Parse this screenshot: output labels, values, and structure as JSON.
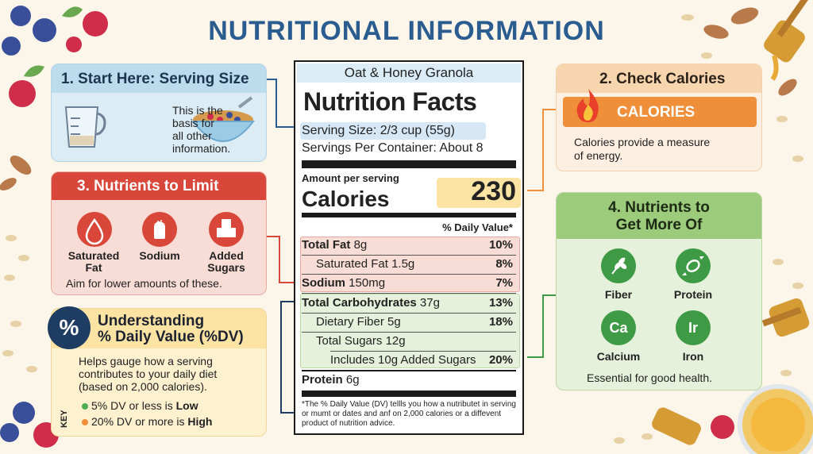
{
  "title": "NUTRITIONAL INFORMATION",
  "label": {
    "product": "Oat & Honey Granola",
    "heading": "Nutrition Facts",
    "serving_size": "Serving Size: 2/3 cup (55g)",
    "servings_per_container": "Servings Per Container:  About 8",
    "amount_per_serving": "Amount per serving",
    "calories_label": "Calories",
    "calories_value": "230",
    "dv_header": "% Daily Value*",
    "rows": [
      {
        "name": "Total Fat",
        "amount": "8g",
        "dv": "10%"
      },
      {
        "name": "Saturated Fat",
        "amount": "1.5g",
        "dv": "8%"
      },
      {
        "name": "Sodium",
        "amount": "150mg",
        "dv": "7%"
      },
      {
        "name": "Total Carbohydrates",
        "amount": "37g",
        "dv": "13%"
      },
      {
        "name": "Dietary Fiber",
        "amount": "5g",
        "dv": "18%"
      },
      {
        "name": "Total Sugars",
        "amount": "12g",
        "dv": ""
      },
      {
        "name": "Includes 10g Added Sugars",
        "amount": "",
        "dv": "20%"
      },
      {
        "name": "Protein",
        "amount": "6g",
        "dv": ""
      }
    ],
    "footnote": "*The % Daily Value (DV) tellls you how a nutributet in serving or mumt or dates and anf on 2,000 calories or a diffevent product of nutrition advice."
  },
  "card1": {
    "heading": "1. Start Here: Serving Size",
    "text_lines": [
      "This is the",
      "basis for",
      "all other",
      "information."
    ]
  },
  "card2": {
    "heading": "2. Check Calories",
    "bar": "CALORIES",
    "text_lines": [
      "Calories provide a measure",
      "of energy."
    ]
  },
  "card3": {
    "heading": "3. Nutrients to Limit",
    "items": [
      [
        "Saturated",
        "Fat"
      ],
      [
        "Sodium",
        ""
      ],
      [
        "Added",
        "Sugars"
      ]
    ],
    "note": "Aim for lower amounts of these."
  },
  "card4": {
    "heading_lines": [
      "4. Nutrients to",
      "Get More Of"
    ],
    "items": [
      {
        "label": "Fiber",
        "icon": "wheat-icon",
        "symbol": ""
      },
      {
        "label": "Protein",
        "icon": "candy-icon",
        "symbol": ""
      },
      {
        "label": "Calcium",
        "icon": "calcium-icon",
        "symbol": "Ca"
      },
      {
        "label": "Iron",
        "icon": "iron-icon",
        "symbol": "Ir"
      }
    ],
    "note": "Essential for good health."
  },
  "card5": {
    "badge": "%",
    "heading_lines": [
      "Understanding",
      "% Daily Value (%DV)"
    ],
    "text_lines": [
      "Helps gauge how a serving",
      "contributes to your daily diet",
      "(based on 2,000 calories)."
    ],
    "key_label": "KEY",
    "key_low": {
      "prefix": "5% DV or less is ",
      "word": "Low",
      "color": "#4caf50"
    },
    "key_high": {
      "prefix": "20% DV or more is ",
      "word": "High",
      "color": "#ef8f3a"
    }
  },
  "colors": {
    "title": "#2a5c8f",
    "limit_red": "#d9473a",
    "good_green": "#3f9a45",
    "calorie_orange": "#ef8f3a",
    "dv_navy": "#1f3d63"
  }
}
